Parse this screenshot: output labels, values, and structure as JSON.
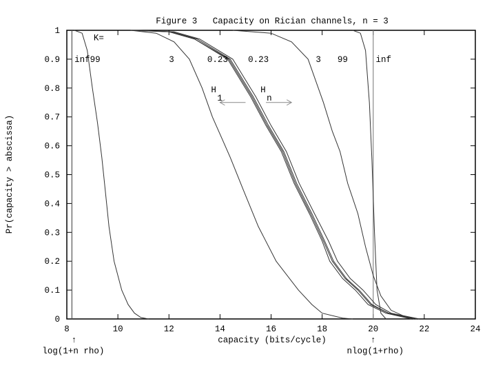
{
  "chart_data": {
    "type": "line",
    "title": "Figure 3   Capacity on Rician channels, n = 3",
    "xlabel": "capacity (bits/cycle)",
    "ylabel": "Pr(capacity > abscissa)",
    "xlim": [
      8,
      24
    ],
    "ylim": [
      0,
      1
    ],
    "xticks": [
      8,
      10,
      12,
      14,
      16,
      18,
      20,
      22,
      24
    ],
    "xtick_labels": [
      "8",
      "10",
      "12",
      "14",
      "16",
      "18",
      "20",
      "22",
      "24"
    ],
    "yticks": [
      0,
      0.1,
      0.2,
      0.3,
      0.4,
      0.5,
      0.6,
      0.7,
      0.8,
      0.9,
      1
    ],
    "ytick_labels": [
      "0",
      "0.1",
      "0.2",
      "0.3",
      "0.4",
      "0.5",
      "0.6",
      "0.7",
      "0.8",
      "0.9",
      "1"
    ],
    "grid": false,
    "line_color": "#333333",
    "reference_color": "#888888",
    "series": [
      {
        "x": [
          8.3,
          8.6,
          8.8,
          9.0,
          9.2,
          9.37,
          9.5,
          9.65,
          9.85,
          10.15,
          10.4,
          10.65,
          10.9,
          11.2
        ],
        "y": [
          1,
          0.99,
          0.93,
          0.8,
          0.68,
          0.56,
          0.45,
          0.32,
          0.2,
          0.1,
          0.05,
          0.02,
          0.005,
          0
        ]
      },
      {
        "x": [
          10.5,
          11.5,
          12.2,
          12.8,
          13.3,
          13.7,
          14.1,
          14.4,
          14.9,
          15.5,
          16.2,
          17.07,
          17.6,
          18.0,
          18.8,
          19.2
        ],
        "y": [
          1,
          0.99,
          0.96,
          0.9,
          0.8,
          0.7,
          0.62,
          0.56,
          0.45,
          0.32,
          0.2,
          0.1,
          0.05,
          0.02,
          0.003,
          0
        ]
      },
      {
        "x": [
          10.5,
          12,
          13,
          14.3,
          15.2,
          15.8,
          16.4,
          16.9,
          17.5,
          18.0,
          18.3,
          18.8,
          19.3,
          19.8,
          20.5,
          21.5
        ],
        "y": [
          1,
          0.995,
          0.97,
          0.9,
          0.77,
          0.67,
          0.58,
          0.47,
          0.365,
          0.27,
          0.2,
          0.14,
          0.1,
          0.05,
          0.02,
          0
        ]
      },
      {
        "x": [
          10.6,
          12.1,
          13.1,
          14.4,
          15.3,
          15.9,
          16.5,
          17.0,
          17.6,
          18.1,
          18.45,
          18.95,
          19.45,
          19.95,
          20.6,
          21.6
        ],
        "y": [
          1,
          0.995,
          0.97,
          0.9,
          0.77,
          0.67,
          0.58,
          0.47,
          0.365,
          0.27,
          0.2,
          0.14,
          0.1,
          0.05,
          0.02,
          0
        ]
      },
      {
        "x": [
          10.5,
          12,
          13,
          14.35,
          15.25,
          15.85,
          16.45,
          16.95,
          17.55,
          18.05,
          18.4,
          18.9,
          19.4,
          19.9,
          20.6,
          21.7
        ],
        "y": [
          1,
          0.995,
          0.97,
          0.9,
          0.77,
          0.67,
          0.58,
          0.47,
          0.365,
          0.27,
          0.2,
          0.14,
          0.1,
          0.05,
          0.02,
          0
        ]
      },
      {
        "x": [
          10.7,
          12.2,
          13.2,
          14.5,
          15.4,
          16.0,
          16.6,
          17.1,
          17.7,
          18.25,
          18.6,
          19.1,
          19.6,
          20.1,
          20.7,
          21.8
        ],
        "y": [
          1,
          0.995,
          0.97,
          0.9,
          0.77,
          0.67,
          0.58,
          0.47,
          0.365,
          0.27,
          0.2,
          0.14,
          0.1,
          0.05,
          0.02,
          0
        ]
      },
      {
        "x": [
          14.5,
          16,
          16.8,
          17.45,
          18.05,
          18.4,
          18.7,
          19.0,
          19.4,
          19.7,
          20.0,
          20.3,
          20.7,
          21.2,
          21.8
        ],
        "y": [
          1,
          0.99,
          0.96,
          0.9,
          0.75,
          0.65,
          0.58,
          0.47,
          0.365,
          0.25,
          0.15,
          0.08,
          0.03,
          0.01,
          0
        ]
      },
      {
        "x": [
          19.2,
          19.5,
          19.7,
          19.85,
          19.95,
          20.05,
          20.15,
          20.3,
          20.5
        ],
        "y": [
          1,
          0.99,
          0.93,
          0.75,
          0.55,
          0.3,
          0.1,
          0.02,
          0
        ]
      }
    ],
    "reference_lines": [
      {
        "x": 8.2,
        "label": "log(1+n rho)"
      },
      {
        "x": 20,
        "label": "nlog(1+rho)"
      }
    ],
    "annotations": [
      {
        "text": "K=",
        "x": 9.05,
        "y": 0.975
      },
      {
        "text": "inf99",
        "x": 8.3,
        "y": 0.9
      },
      {
        "text": "3",
        "x": 12.0,
        "y": 0.9
      },
      {
        "text": "0.23",
        "x": 13.5,
        "y": 0.9
      },
      {
        "text": "0.23",
        "x": 15.1,
        "y": 0.9
      },
      {
        "text": "3",
        "x": 17.75,
        "y": 0.9
      },
      {
        "text": "99",
        "x": 18.6,
        "y": 0.9
      },
      {
        "text": "inf",
        "x": 20.1,
        "y": 0.9
      }
    ],
    "arrows": [
      {
        "label": "H",
        "subscript": "1",
        "x_from": 15.0,
        "x_to": 14.0,
        "y": 0.75
      },
      {
        "label": "H",
        "subscript": "n",
        "x_from": 15.8,
        "x_to": 16.8,
        "y": 0.75
      }
    ],
    "arrow_glyph": "↑"
  }
}
